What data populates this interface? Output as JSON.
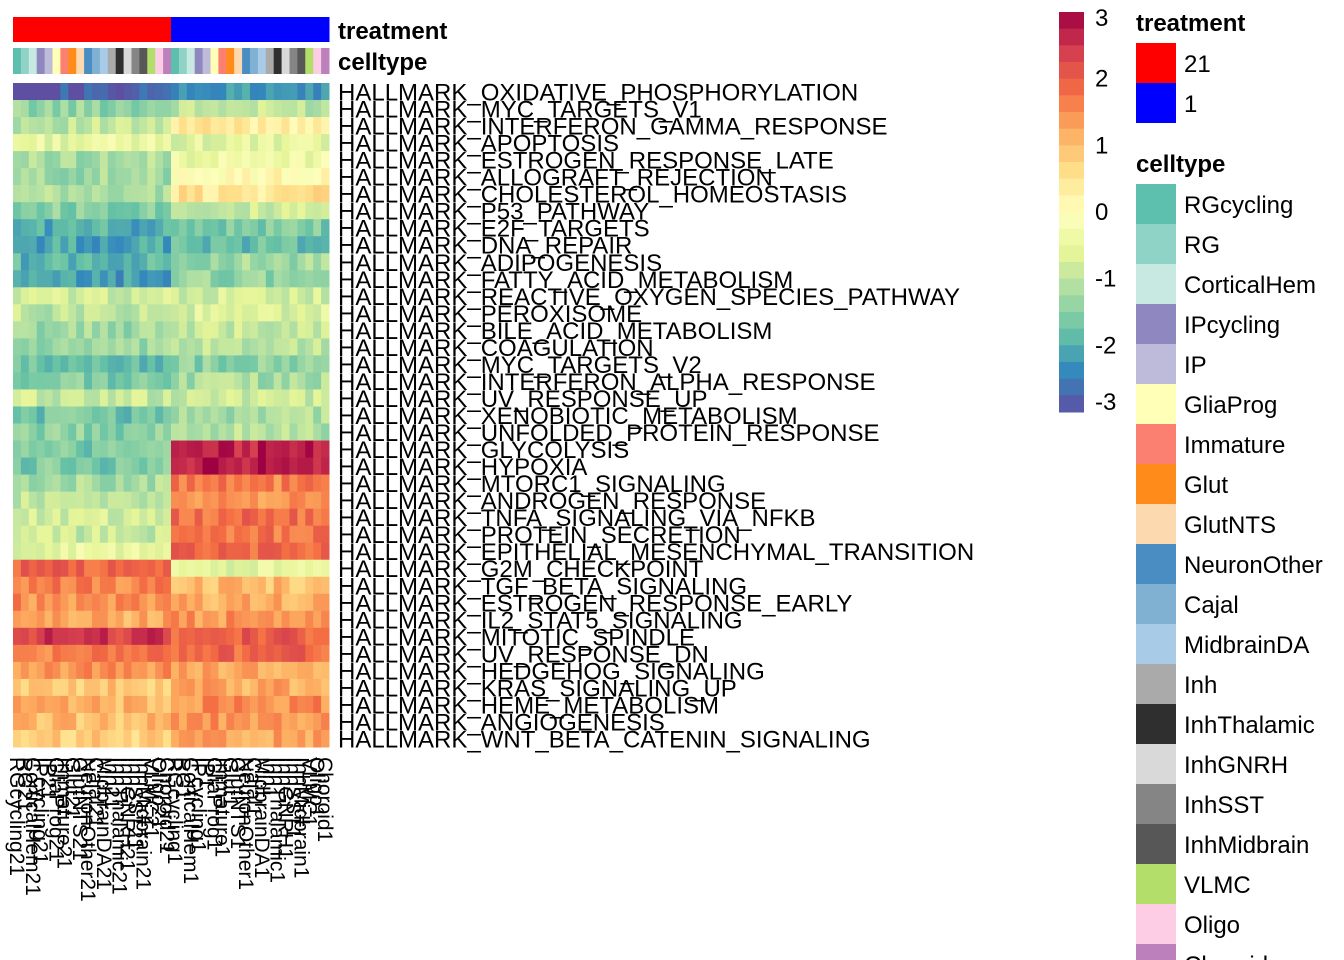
{
  "chart_data": {
    "type": "heatmap",
    "title": "",
    "xlabel": "",
    "ylabel": "",
    "annotation_labels": {
      "treatment": "treatment",
      "celltype": "celltype"
    },
    "columns": [
      "RGcycling21",
      "RG21",
      "CorticalHem21",
      "IPcycling21",
      "IP21",
      "GliaProg21",
      "Immature21",
      "Glut21",
      "GlutNTS21",
      "NeuronOther21",
      "Cajal21",
      "MidbrainDA21",
      "Inh21",
      "InhThalamic21",
      "InhGNRH21",
      "InhSST21",
      "InhMidbrain21",
      "VLMC21",
      "Oligo21",
      "Choroid21",
      "RGcycling1",
      "RG1",
      "CorticalHem1",
      "IPcycling1",
      "IP1",
      "GliaProg1",
      "Immature1",
      "Glut1",
      "GlutNTS1",
      "NeuronOther1",
      "Cajal1",
      "MidbrainDA1",
      "Inh1",
      "InhThalamic1",
      "InhGNRH1",
      "InhSST1",
      "InhMidbrain1",
      "VLMC1",
      "Oligo1",
      "Choroid1"
    ],
    "column_treatment": [
      "21",
      "21",
      "21",
      "21",
      "21",
      "21",
      "21",
      "21",
      "21",
      "21",
      "21",
      "21",
      "21",
      "21",
      "21",
      "21",
      "21",
      "21",
      "21",
      "21",
      "1",
      "1",
      "1",
      "1",
      "1",
      "1",
      "1",
      "1",
      "1",
      "1",
      "1",
      "1",
      "1",
      "1",
      "1",
      "1",
      "1",
      "1",
      "1",
      "1"
    ],
    "rows": [
      "HALLMARK_OXIDATIVE_PHOSPHORYLATION",
      "HALLMARK_MYC_TARGETS_V1",
      "HALLMARK_INTERFERON_GAMMA_RESPONSE",
      "HALLMARK_APOPTOSIS",
      "HALLMARK_ESTROGEN_RESPONSE_LATE",
      "HALLMARK_ALLOGRAFT_REJECTION",
      "HALLMARK_CHOLESTEROL_HOMEOSTASIS",
      "HALLMARK_P53_PATHWAY",
      "HALLMARK_E2F_TARGETS",
      "HALLMARK_DNA_REPAIR",
      "HALLMARK_ADIPOGENESIS",
      "HALLMARK_FATTY_ACID_METABOLISM",
      "HALLMARK_REACTIVE_OXYGEN_SPECIES_PATHWAY",
      "HALLMARK_PEROXISOME",
      "HALLMARK_BILE_ACID_METABOLISM",
      "HALLMARK_COAGULATION",
      "HALLMARK_MYC_TARGETS_V2",
      "HALLMARK_INTERFERON_ALPHA_RESPONSE",
      "HALLMARK_UV_RESPONSE_UP",
      "HALLMARK_XENOBIOTIC_METABOLISM",
      "HALLMARK_UNFOLDED_PROTEIN_RESPONSE",
      "HALLMARK_GLYCOLYSIS",
      "HALLMARK_HYPOXIA",
      "HALLMARK_MTORC1_SIGNALING",
      "HALLMARK_ANDROGEN_RESPONSE",
      "HALLMARK_TNFA_SIGNALING_VIA_NFKB",
      "HALLMARK_PROTEIN_SECRETION",
      "HALLMARK_EPITHELIAL_MESENCHYMAL_TRANSITION",
      "HALLMARK_G2M_CHECKPOINT",
      "HALLMARK_TGF_BETA_SIGNALING",
      "HALLMARK_ESTROGEN_RESPONSE_EARLY",
      "HALLMARK_IL2_STAT5_SIGNALING",
      "HALLMARK_MITOTIC_SPINDLE",
      "HALLMARK_UV_RESPONSE_DN",
      "HALLMARK_HEDGEHOG_SIGNALING",
      "HALLMARK_KRAS_SIGNALING_UP",
      "HALLMARK_HEME_METABOLISM",
      "HALLMARK_ANGIOGENESIS",
      "HALLMARK_WNT_BETA_CATENIN_SIGNALING"
    ],
    "row_levels_21": [
      -2.9,
      -1.4,
      -1.0,
      -0.5,
      -1.2,
      -1.3,
      -1.2,
      -1.5,
      -2.0,
      -2.1,
      -1.9,
      -2.2,
      -0.8,
      -1.0,
      -1.3,
      -1.4,
      -1.8,
      -1.6,
      -0.9,
      -1.7,
      -1.5,
      -1.6,
      -1.6,
      -1.2,
      -1.0,
      -0.8,
      -0.9,
      -0.5,
      1.9,
      1.6,
      1.5,
      1.2,
      2.4,
      1.7,
      1.4,
      0.9,
      1.1,
      1.0,
      0.8
    ],
    "row_levels_1": [
      -2.3,
      -1.0,
      0.4,
      -0.6,
      -0.4,
      0.1,
      0.5,
      -0.9,
      -1.6,
      -1.8,
      -1.3,
      -1.4,
      -0.8,
      -0.7,
      -0.9,
      -1.0,
      -1.5,
      -1.2,
      -0.9,
      -1.2,
      -1.1,
      2.7,
      2.8,
      1.6,
      1.4,
      1.8,
      1.7,
      1.9,
      -0.6,
      1.0,
      1.2,
      1.4,
      2.0,
      1.9,
      1.3,
      1.2,
      1.5,
      1.4,
      1.3
    ],
    "color_scale": {
      "min": -3,
      "max": 3,
      "ticks": [
        "3",
        "2",
        "1",
        "0",
        "-1",
        "-2",
        "-3"
      ],
      "colors": [
        "#5E4FA2",
        "#3288BD",
        "#66C2A5",
        "#ABDDA4",
        "#E6F598",
        "#FFFFBF",
        "#FEE08B",
        "#FDAE61",
        "#F46D43",
        "#D53E4F",
        "#9E0142"
      ]
    },
    "legend": {
      "treatment": {
        "title": "treatment",
        "entries": [
          {
            "label": "21",
            "color": "#FF0000"
          },
          {
            "label": "1",
            "color": "#0000FF"
          }
        ]
      },
      "celltype": {
        "title": "celltype",
        "entries": [
          {
            "label": "RGcycling",
            "color": "#5DBFAE"
          },
          {
            "label": "RG",
            "color": "#8FD3C6"
          },
          {
            "label": "CorticalHem",
            "color": "#C7E9E1"
          },
          {
            "label": "IPcycling",
            "color": "#8F87BF"
          },
          {
            "label": "IP",
            "color": "#BEBADA"
          },
          {
            "label": "GliaProg",
            "color": "#FFFFB8"
          },
          {
            "label": "Immature",
            "color": "#FB8072"
          },
          {
            "label": "Glut",
            "color": "#FF8C1A"
          },
          {
            "label": "GlutNTS",
            "color": "#FDD9B0"
          },
          {
            "label": "NeuronOther",
            "color": "#4A8DC2"
          },
          {
            "label": "Cajal",
            "color": "#80B1D3"
          },
          {
            "label": "MidbrainDA",
            "color": "#A8CBE8"
          },
          {
            "label": "Inh",
            "color": "#AAAAAA"
          },
          {
            "label": "InhThalamic",
            "color": "#2F2F2F"
          },
          {
            "label": "InhGNRH",
            "color": "#D9D9D9"
          },
          {
            "label": "InhSST",
            "color": "#858585"
          },
          {
            "label": "InhMidbrain",
            "color": "#575757"
          },
          {
            "label": "VLMC",
            "color": "#B3DE69"
          },
          {
            "label": "Oligo",
            "color": "#FCCDE5"
          },
          {
            "label": "Choroid",
            "color": "#BC80BD"
          }
        ]
      }
    }
  }
}
